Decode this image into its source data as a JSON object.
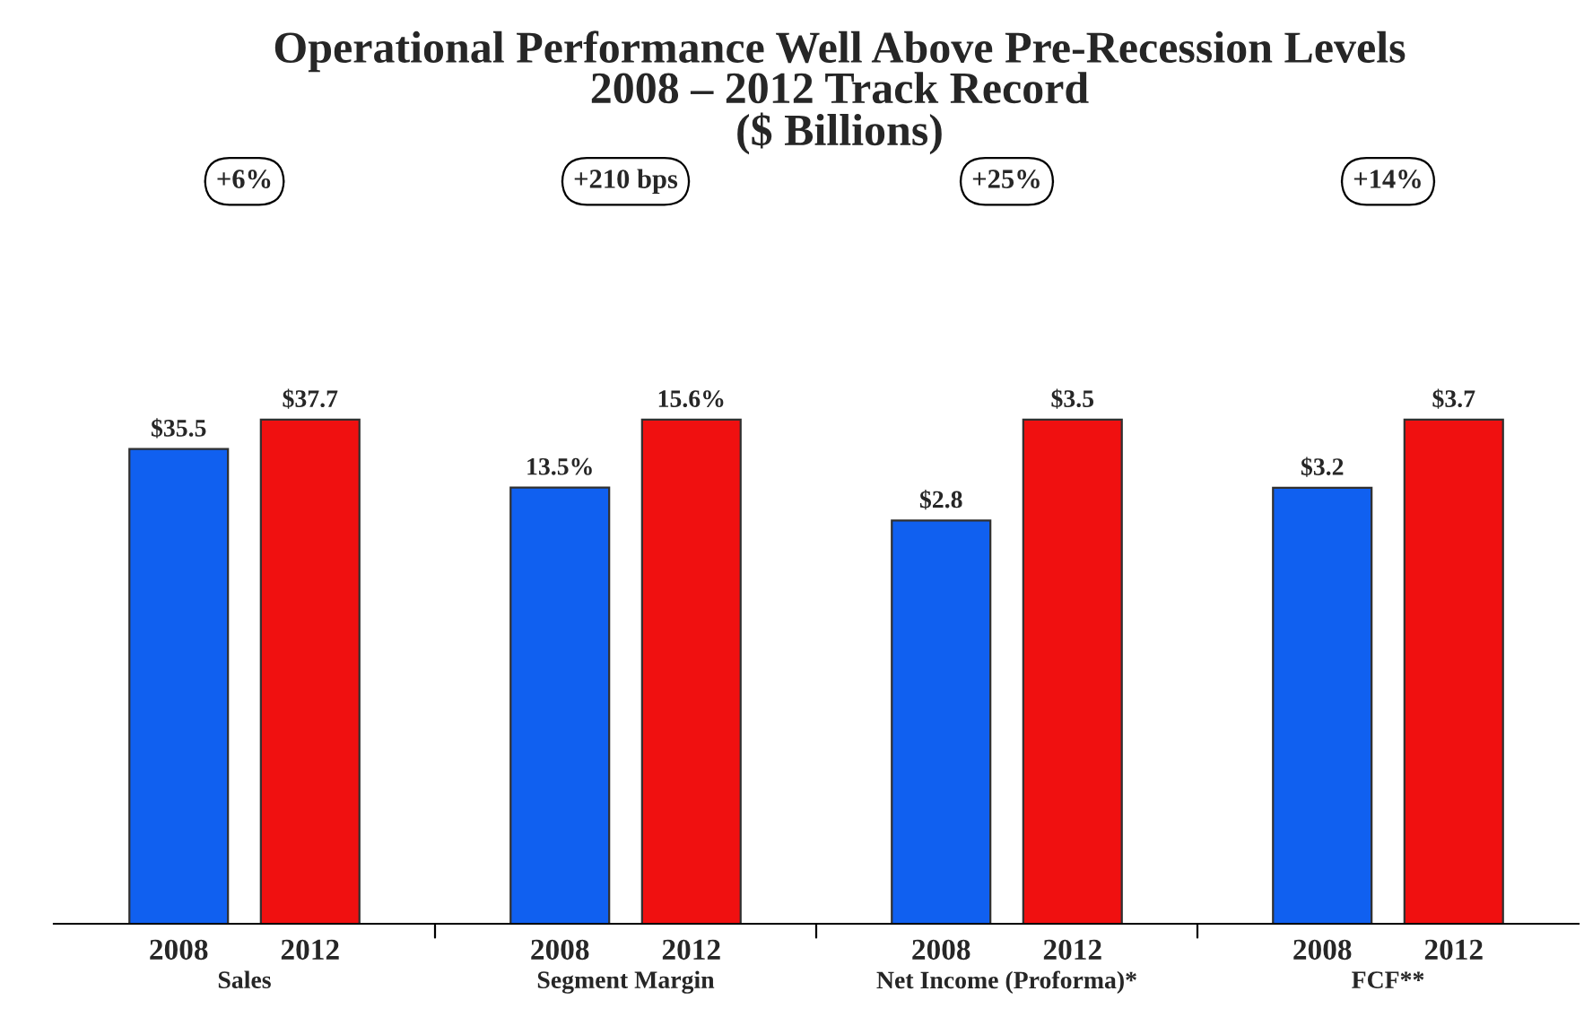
{
  "chart_data": [
    {
      "type": "bar",
      "title": "Operational Performance Well Above Pre-Recession Levels\n2008 – 2012 Track Record\n($ Billions)",
      "xlabel": "Sales",
      "categories": [
        "2008",
        "2012"
      ],
      "values": [
        35.5,
        37.7
      ],
      "colors": [
        "#1060f0",
        "#f01010"
      ],
      "value_labels": [
        "$35.5",
        "$37.7"
      ],
      "annotations": [
        "+6%"
      ]
    },
    {
      "type": "bar",
      "xlabel": "Segment Margin",
      "categories": [
        "2008",
        "2012"
      ],
      "values": [
        13.5,
        15.6
      ],
      "colors": [
        "#1060f0",
        "#f01010"
      ],
      "value_labels": [
        "13.5%",
        "15.6%"
      ],
      "annotations": [
        "+210 bps"
      ]
    },
    {
      "type": "bar",
      "xlabel": "Net Income (Proforma)*",
      "categories": [
        "2008",
        "2012"
      ],
      "values": [
        2.8,
        3.5
      ],
      "colors": [
        "#1060f0",
        "#f01010"
      ],
      "value_labels": [
        "$2.8",
        "$3.5"
      ],
      "annotations": [
        "+25%"
      ]
    },
    {
      "type": "bar",
      "xlabel": "FCF**",
      "categories": [
        "2008",
        "2012"
      ],
      "values": [
        3.2,
        3.7
      ],
      "colors": [
        "#1060f0",
        "#f01010"
      ],
      "value_labels": [
        "$3.2",
        "$3.7"
      ],
      "annotations": [
        "+14%"
      ]
    }
  ]
}
